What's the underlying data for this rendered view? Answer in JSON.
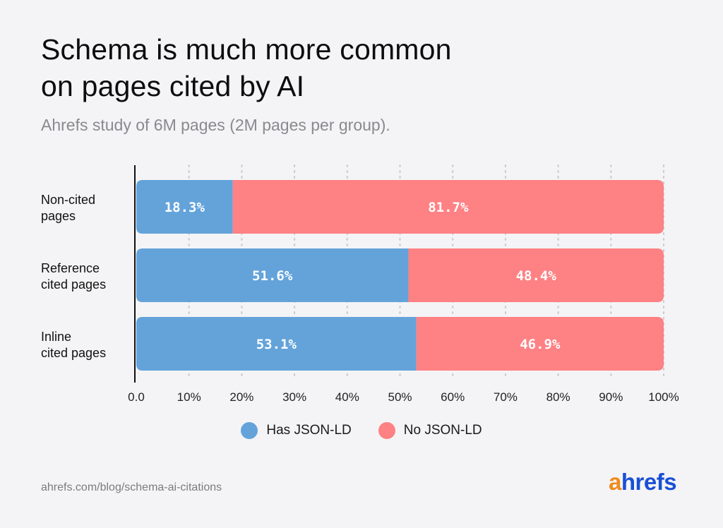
{
  "title_line1": "Schema is much more common",
  "title_line2": "on pages cited by AI",
  "subtitle": "Ahrefs study of 6M pages (2M pages per group).",
  "source": "ahrefs.com/blog/schema-ai-citations",
  "logo": {
    "first": "a",
    "rest": "hrefs"
  },
  "colors": {
    "has": "#63a3da",
    "no": "#fe8184",
    "background": "#f4f4f6"
  },
  "chart_data": {
    "type": "bar",
    "orientation": "horizontal",
    "stacked": true,
    "categories": [
      [
        "Non-cited",
        "pages"
      ],
      [
        "Reference",
        "cited pages"
      ],
      [
        "Inline",
        "cited pages"
      ]
    ],
    "series": [
      {
        "name": "Has JSON-LD",
        "values": [
          18.3,
          51.6,
          53.1
        ],
        "labels": [
          "18.3%",
          "51.6%",
          "53.1%"
        ]
      },
      {
        "name": "No JSON-LD",
        "values": [
          81.7,
          48.4,
          46.9
        ],
        "labels": [
          "81.7%",
          "48.4%",
          "46.9%"
        ]
      }
    ],
    "xlim": [
      0,
      100
    ],
    "xticks": [
      "0.0",
      "10%",
      "20%",
      "30%",
      "40%",
      "50%",
      "60%",
      "70%",
      "80%",
      "90%",
      "100%"
    ],
    "grid": "vertical dotted",
    "legend_position": "bottom-center"
  }
}
